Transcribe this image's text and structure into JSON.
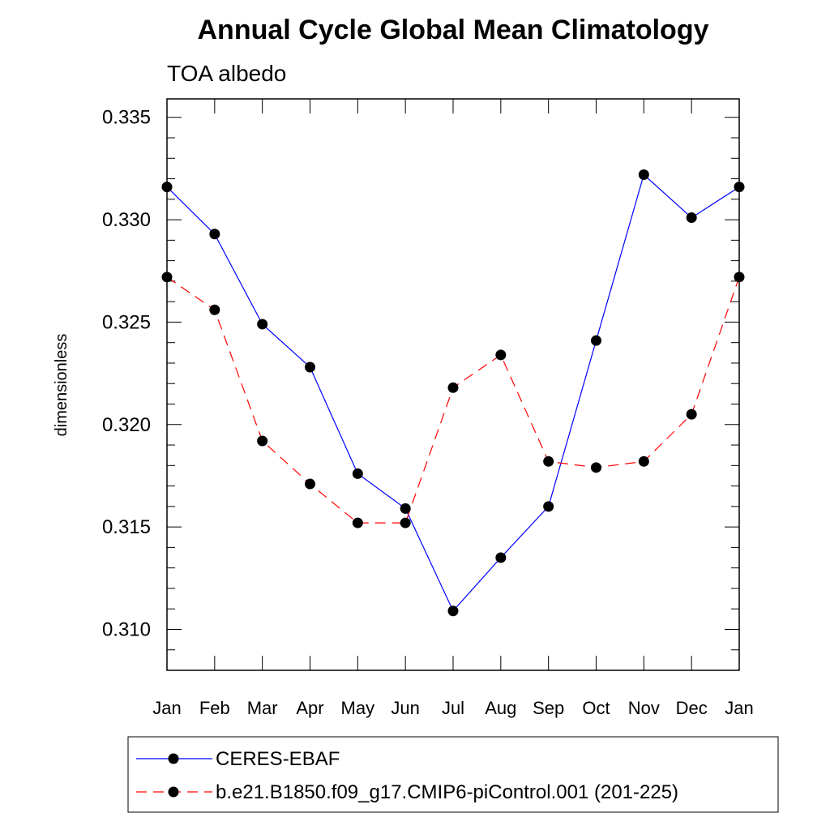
{
  "chart_data": {
    "type": "line",
    "title": "Annual Cycle Global Mean Climatology",
    "subtitle": "TOA albedo",
    "ylabel": "dimensionless",
    "xlabel": "",
    "categories": [
      "Jan",
      "Feb",
      "Mar",
      "Apr",
      "May",
      "Jun",
      "Jul",
      "Aug",
      "Sep",
      "Oct",
      "Nov",
      "Dec",
      "Jan"
    ],
    "ylim": [
      0.308,
      0.3359
    ],
    "yticks": [
      "0.310",
      "0.315",
      "0.320",
      "0.325",
      "0.330",
      "0.335"
    ],
    "legend_position": "bottom",
    "series": [
      {
        "name": "CERES-EBAF",
        "color": "#0000ff",
        "dash": "solid",
        "values": [
          0.3316,
          0.3293,
          0.3249,
          0.3228,
          0.3176,
          0.3159,
          0.3109,
          0.3135,
          0.316,
          0.3241,
          0.3322,
          0.3301,
          0.3316
        ]
      },
      {
        "name": "b.e21.B1850.f09_g17.CMIP6-piControl.001 (201-225)",
        "color": "#ff0000",
        "dash": "dashed",
        "values": [
          0.3272,
          0.3256,
          0.3192,
          0.3171,
          0.3152,
          0.3152,
          0.3218,
          0.3234,
          0.3182,
          0.3179,
          0.3182,
          0.3205,
          0.3272
        ]
      }
    ]
  }
}
